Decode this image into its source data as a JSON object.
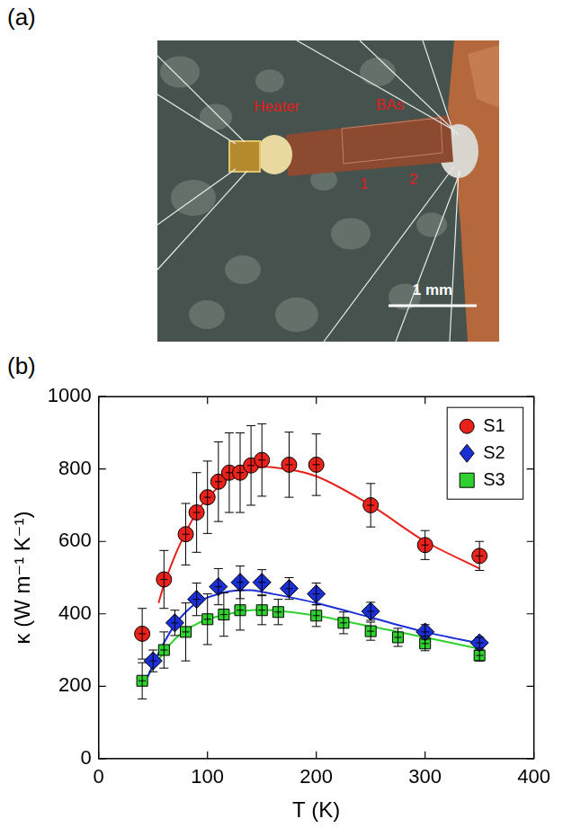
{
  "panel_a": {
    "letter": "(a)",
    "heater_label": "Heater",
    "sample_label": "BAs",
    "contact_labels": [
      "1",
      "2"
    ],
    "scale_bar": "1 mm"
  },
  "chart_data": {
    "type": "scatter",
    "panel_label": "(b)",
    "x_label": "T (K)",
    "y_label": "κ (W m⁻¹ K⁻¹)",
    "xlim": [
      0,
      400
    ],
    "xticks": [
      0,
      100,
      200,
      300,
      400
    ],
    "ylim": [
      0,
      1000
    ],
    "yticks": [
      0,
      200,
      400,
      600,
      800,
      1000
    ],
    "grid": false,
    "legend": "upper right",
    "series": [
      {
        "name": "S1",
        "color": "#e8211b",
        "marker": "circle",
        "x": [
          40,
          60,
          80,
          90,
          100,
          110,
          120,
          130,
          140,
          150,
          175,
          200,
          250,
          300,
          350
        ],
        "values": [
          345,
          495,
          620,
          680,
          722,
          765,
          790,
          790,
          810,
          825,
          812,
          812,
          700,
          590,
          560
        ],
        "errors": [
          70,
          80,
          85,
          110,
          100,
          110,
          110,
          110,
          110,
          100,
          90,
          85,
          60,
          40,
          40
        ],
        "fit": {
          "x": [
            55,
            60,
            70,
            80,
            90,
            100,
            120,
            140,
            160,
            200,
            250,
            300,
            350
          ],
          "values": [
            430,
            480,
            560,
            625,
            680,
            720,
            775,
            800,
            805,
            780,
            700,
            600,
            525
          ]
        }
      },
      {
        "name": "S2",
        "color": "#1a2fd6",
        "marker": "diamond",
        "x": [
          50,
          70,
          90,
          110,
          130,
          150,
          175,
          200,
          250,
          300,
          350
        ],
        "values": [
          270,
          375,
          440,
          475,
          487,
          487,
          470,
          455,
          407,
          350,
          320
        ],
        "errors": [
          30,
          35,
          45,
          50,
          45,
          35,
          30,
          30,
          25,
          20,
          15
        ],
        "fit": {
          "x": [
            45,
            50,
            60,
            70,
            80,
            90,
            100,
            120,
            140,
            160,
            200,
            250,
            300,
            350
          ],
          "values": [
            225,
            260,
            320,
            370,
            405,
            430,
            445,
            462,
            465,
            455,
            430,
            390,
            350,
            318
          ]
        }
      },
      {
        "name": "S3",
        "color": "#2fd12f",
        "marker": "square",
        "x": [
          40,
          60,
          80,
          100,
          115,
          130,
          150,
          165,
          200,
          225,
          250,
          275,
          300,
          350
        ],
        "values": [
          215,
          300,
          350,
          385,
          398,
          410,
          410,
          405,
          395,
          375,
          352,
          335,
          318,
          285
        ],
        "errors": [
          50,
          50,
          80,
          70,
          60,
          55,
          40,
          35,
          30,
          30,
          25,
          25,
          20,
          15
        ],
        "fit": {
          "x": [
            40,
            50,
            60,
            70,
            80,
            90,
            100,
            120,
            140,
            160,
            200,
            250,
            300,
            350
          ],
          "values": [
            210,
            250,
            295,
            330,
            355,
            372,
            385,
            400,
            410,
            410,
            395,
            365,
            335,
            303
          ]
        }
      }
    ]
  }
}
